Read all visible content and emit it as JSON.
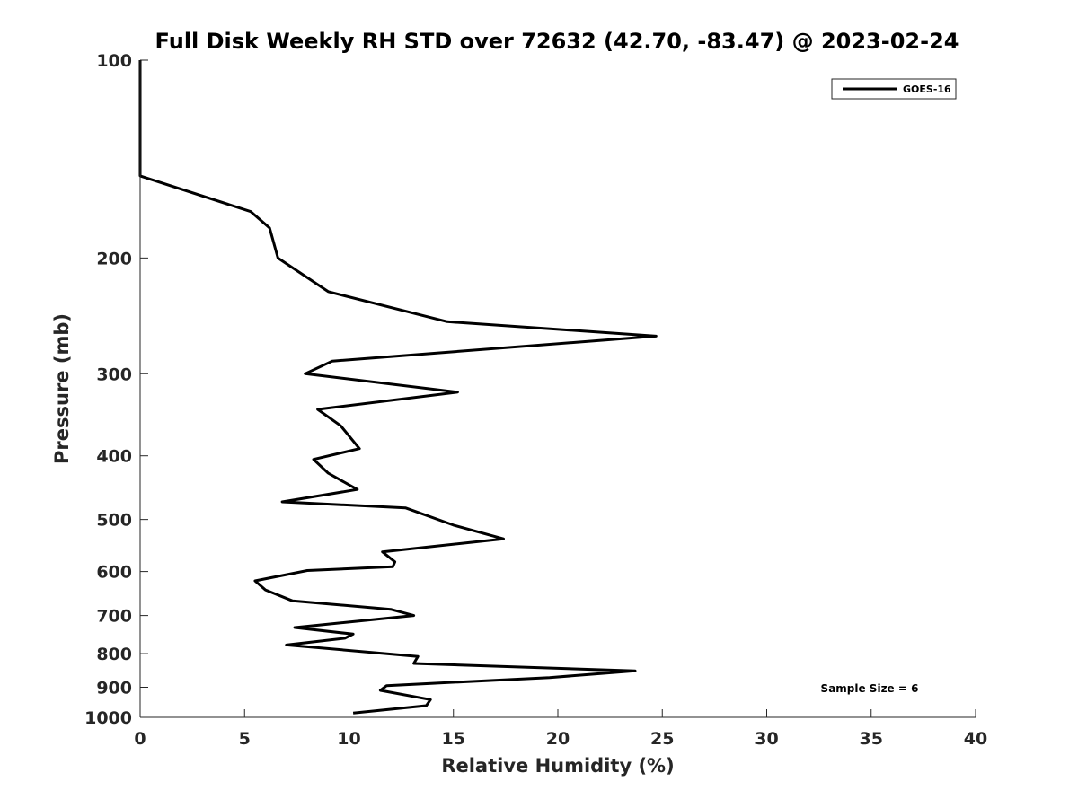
{
  "chart_data": {
    "type": "line",
    "title": "Full Disk Weekly RH STD over 72632 (42.70, -83.47) @ 2023-02-24",
    "xlabel": "Relative Humidity (%)",
    "ylabel": "Pressure (mb)",
    "xlim": [
      0,
      40
    ],
    "ylim": [
      100,
      1000
    ],
    "yscale": "log",
    "y_reversed": true,
    "grid": false,
    "x_ticks": [
      0,
      5,
      10,
      15,
      20,
      25,
      30,
      35,
      40
    ],
    "y_ticks": [
      100,
      200,
      300,
      400,
      500,
      600,
      700,
      800,
      900,
      1000
    ],
    "legend_position": "top-right",
    "annotation": "Sample Size = 6",
    "series": [
      {
        "name": "GOES-16",
        "color": "#000000",
        "x": [
          0,
          0,
          5.3,
          6.2,
          6.6,
          9.0,
          14.7,
          24.7,
          9.2,
          7.9,
          15.2,
          8.5,
          9.6,
          10.5,
          8.3,
          9.0,
          10.4,
          6.8,
          12.7,
          15.0,
          17.4,
          11.6,
          12.2,
          12.1,
          8.0,
          5.5,
          6.0,
          7.3,
          12.0,
          13.1,
          7.4,
          10.2,
          9.8,
          7.0,
          13.3,
          13.1,
          23.7,
          19.6,
          11.8,
          11.5,
          13.9,
          13.7,
          10.2
        ],
        "y": [
          100,
          150,
          170,
          180,
          200,
          225,
          250,
          263,
          287,
          300,
          320,
          340,
          360,
          390,
          405,
          425,
          450,
          470,
          480,
          510,
          535,
          560,
          580,
          590,
          598,
          620,
          640,
          665,
          685,
          700,
          730,
          747,
          758,
          776,
          808,
          828,
          850,
          870,
          895,
          910,
          940,
          960,
          985
        ]
      }
    ]
  }
}
